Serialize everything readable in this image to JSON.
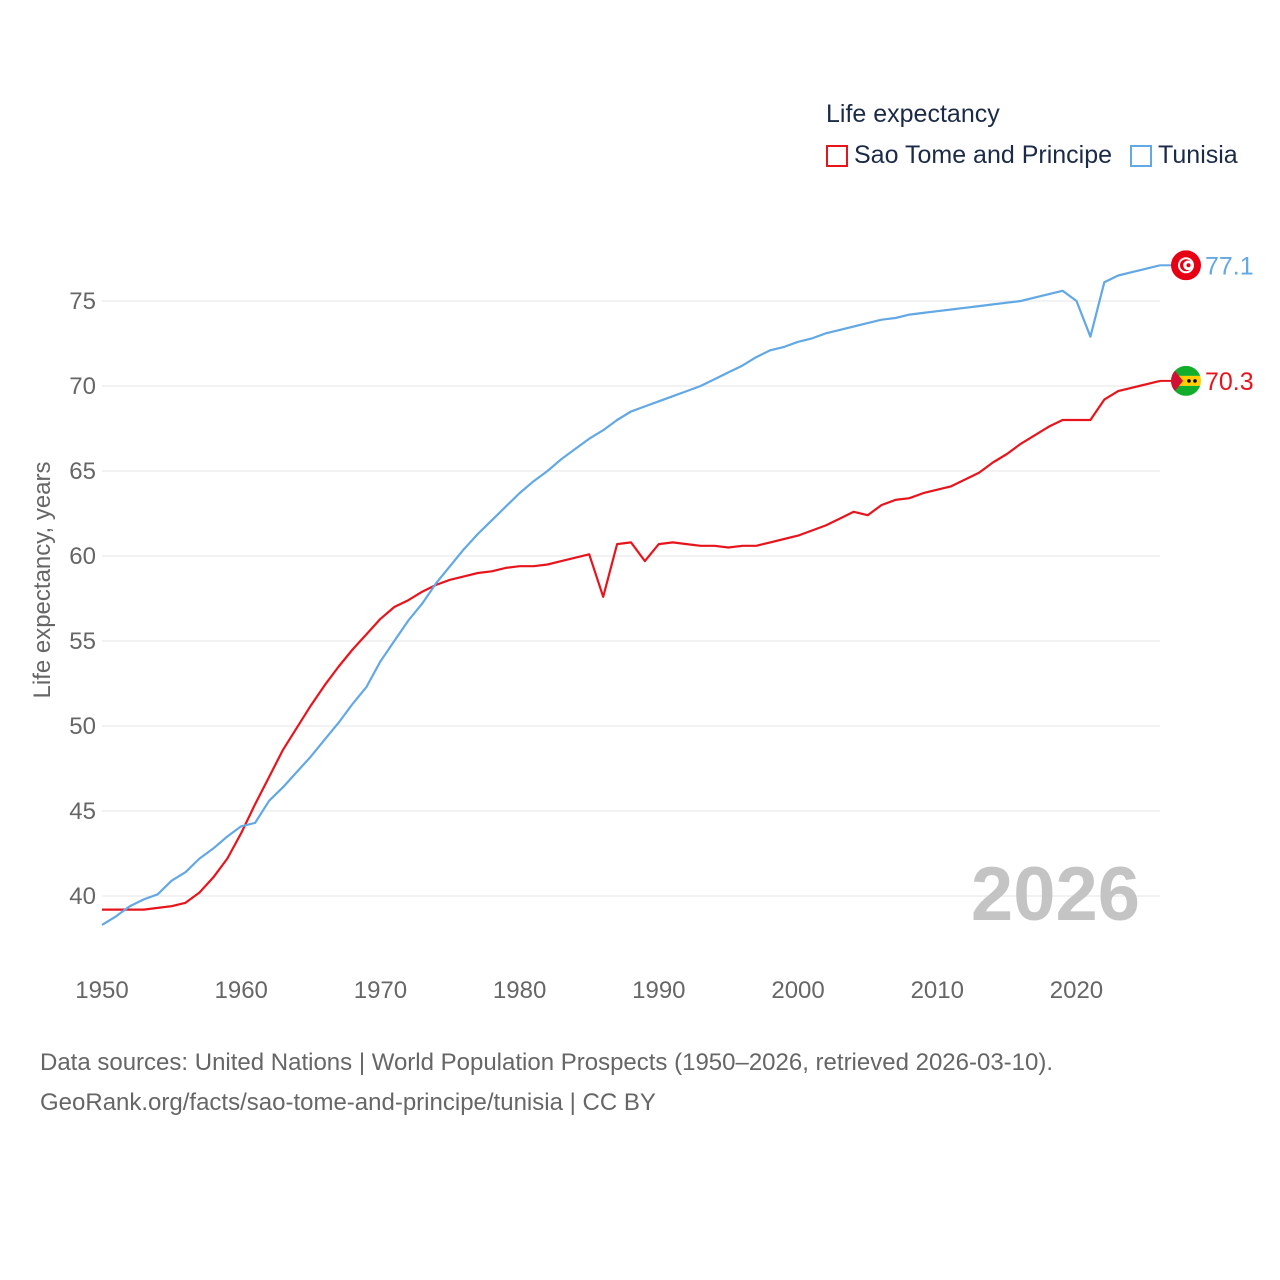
{
  "legend": {
    "title": "Life expectancy",
    "items": [
      {
        "label": "Sao Tome and Principe",
        "color": "#e8141c"
      },
      {
        "label": "Tunisia",
        "color": "#62a8e5"
      }
    ]
  },
  "year_display": "2026",
  "sources": {
    "line1": "Data sources: United Nations | World Population Prospects (1950–2026, retrieved 2026-03-10).",
    "line2": "GeoRank.org/facts/sao-tome-and-principe/tunisia | CC BY"
  },
  "chart_data": {
    "type": "line",
    "title": "Life expectancy",
    "xlabel": "",
    "ylabel": "Life expectancy, years",
    "xlim": [
      1950,
      2026
    ],
    "ylim": [
      38,
      78
    ],
    "xticks": [
      1950,
      1960,
      1970,
      1980,
      1990,
      2000,
      2010,
      2020
    ],
    "yticks": [
      40,
      45,
      50,
      55,
      60,
      65,
      70,
      75
    ],
    "grid": true,
    "x": [
      1950,
      1951,
      1952,
      1953,
      1954,
      1955,
      1956,
      1957,
      1958,
      1959,
      1960,
      1961,
      1962,
      1963,
      1964,
      1965,
      1966,
      1967,
      1968,
      1969,
      1970,
      1971,
      1972,
      1973,
      1974,
      1975,
      1976,
      1977,
      1978,
      1979,
      1980,
      1981,
      1982,
      1983,
      1984,
      1985,
      1986,
      1987,
      1988,
      1989,
      1990,
      1991,
      1992,
      1993,
      1994,
      1995,
      1996,
      1997,
      1998,
      1999,
      2000,
      2001,
      2002,
      2003,
      2004,
      2005,
      2006,
      2007,
      2008,
      2009,
      2010,
      2011,
      2012,
      2013,
      2014,
      2015,
      2016,
      2017,
      2018,
      2019,
      2020,
      2021,
      2022,
      2023,
      2024,
      2025,
      2026
    ],
    "series": [
      {
        "name": "Sao Tome and Principe",
        "color": "#e8141c",
        "end_label": "70.3",
        "flag": "sao-tome-and-principe-flag-icon",
        "values": [
          39.2,
          39.2,
          39.2,
          39.2,
          39.3,
          39.4,
          39.6,
          40.2,
          41.1,
          42.2,
          43.7,
          45.4,
          47.0,
          48.6,
          49.9,
          51.2,
          52.4,
          53.5,
          54.5,
          55.4,
          56.3,
          57.0,
          57.4,
          57.9,
          58.3,
          58.6,
          58.8,
          59.0,
          59.1,
          59.3,
          59.4,
          59.4,
          59.5,
          59.7,
          59.9,
          60.1,
          57.6,
          60.7,
          60.8,
          59.7,
          60.7,
          60.8,
          60.7,
          60.6,
          60.6,
          60.5,
          60.6,
          60.6,
          60.8,
          61.0,
          61.2,
          61.5,
          61.8,
          62.2,
          62.6,
          62.4,
          63.0,
          63.3,
          63.4,
          63.7,
          63.9,
          64.1,
          64.5,
          64.9,
          65.5,
          66.0,
          66.6,
          67.1,
          67.6,
          68.0,
          68.0,
          68.0,
          69.2,
          69.7,
          69.9,
          70.1,
          70.3
        ]
      },
      {
        "name": "Tunisia",
        "color": "#62a8e5",
        "end_label": "77.1",
        "flag": "tunisia-flag-icon",
        "values": [
          38.3,
          38.8,
          39.4,
          39.8,
          40.1,
          40.9,
          41.4,
          42.2,
          42.8,
          43.5,
          44.1,
          44.3,
          45.6,
          46.4,
          47.3,
          48.2,
          49.2,
          50.2,
          51.3,
          52.3,
          53.8,
          55.0,
          56.2,
          57.2,
          58.4,
          59.4,
          60.4,
          61.3,
          62.1,
          62.9,
          63.7,
          64.4,
          65.0,
          65.7,
          66.3,
          66.9,
          67.4,
          68.0,
          68.5,
          68.8,
          69.1,
          69.4,
          69.7,
          70.0,
          70.4,
          70.8,
          71.2,
          71.7,
          72.1,
          72.3,
          72.6,
          72.8,
          73.1,
          73.3,
          73.5,
          73.7,
          73.9,
          74.0,
          74.2,
          74.3,
          74.4,
          74.5,
          74.6,
          74.7,
          74.8,
          74.9,
          75.0,
          75.2,
          75.4,
          75.6,
          75.0,
          72.9,
          76.1,
          76.5,
          76.7,
          76.9,
          77.1
        ]
      }
    ]
  }
}
